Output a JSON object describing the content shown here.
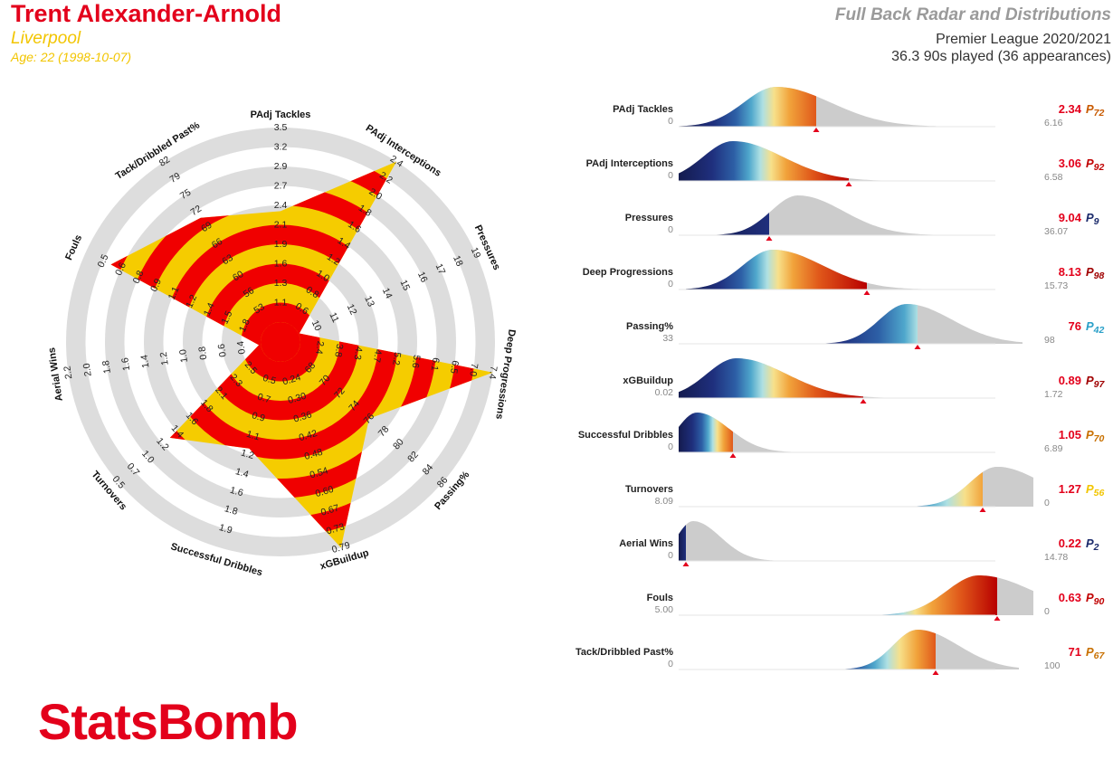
{
  "header": {
    "player": "Trent Alexander-Arnold",
    "team": "Liverpool",
    "age": "Age: 22 (1998-10-07)",
    "title": "Full Back Radar and Distributions",
    "competition": "Premier League 2020/2021",
    "minutes": "36.3 90s played (36 appearances)"
  },
  "brand": "StatsBomb",
  "colors": {
    "radar_red": "#f00000",
    "radar_yellow": "#f5cc00",
    "ring_grey": "#dddddd",
    "dist_grey": "#cccccc",
    "value_red": "#e3001b",
    "marker_red": "#e3001b"
  },
  "chart_data": [
    {
      "type": "radar",
      "metrics": [
        {
          "name": "PAdj Tackles",
          "ticks": [
            "1.1",
            "1.3",
            "1.6",
            "1.9",
            "2.1",
            "2.4",
            "2.7",
            "2.9",
            "3.2",
            "3.5"
          ],
          "value": 2.34,
          "range": [
            0.8,
            3.5
          ],
          "reversed": false
        },
        {
          "name": "PAdj Interceptions",
          "ticks": [
            "0.6",
            "0.8",
            "1.0",
            "1.2",
            "1.4",
            "1.6",
            "1.8",
            "2.0",
            "2.2",
            "2.4"
          ],
          "value": 3.06,
          "range": [
            0.4,
            2.4
          ],
          "reversed": false
        },
        {
          "name": "Pressures",
          "ticks": [
            "10",
            "11",
            "12",
            "13",
            "14",
            "15",
            "16",
            "17",
            "18",
            "19"
          ],
          "value": 9.04,
          "range": [
            9,
            19
          ],
          "reversed": false
        },
        {
          "name": "Deep Progressions",
          "ticks": [
            "2.4",
            "3.8",
            "4.3",
            "4.7",
            "5.2",
            "5.6",
            "6.1",
            "6.5",
            "7.0",
            "7.4"
          ],
          "value": 8.13,
          "range": [
            2.0,
            7.4
          ],
          "reversed": false
        },
        {
          "name": "Passing%",
          "ticks": [
            "68",
            "70",
            "72",
            "74",
            "76",
            "78",
            "80",
            "82",
            "84",
            "86"
          ],
          "value": 76,
          "range": [
            66,
            86
          ],
          "reversed": false
        },
        {
          "name": "xGBuildup",
          "ticks": [
            "0.24",
            "0.30",
            "0.36",
            "0.42",
            "0.48",
            "0.54",
            "0.60",
            "0.67",
            "0.73",
            "0.79"
          ],
          "value": 0.89,
          "range": [
            0.18,
            0.79
          ],
          "reversed": false
        },
        {
          "name": "Successful Dribbles",
          "ticks": [
            "0.5",
            "0.7",
            "0.9",
            "1.1",
            "1.2",
            "1.4",
            "1.6",
            "1.8",
            "1.9"
          ],
          "value": 1.05,
          "range": [
            0.3,
            1.9
          ],
          "reversed": false
        },
        {
          "name": "Turnovers",
          "ticks": [
            "2.5",
            "2.3",
            "2.1",
            "1.8",
            "1.6",
            "1.4",
            "1.2",
            "1.0",
            "0.7",
            "0.5"
          ],
          "value": 1.27,
          "range": [
            2.7,
            0.5
          ],
          "reversed": true
        },
        {
          "name": "Aerial Wins",
          "ticks": [
            "0.4",
            "0.6",
            "0.8",
            "1.0",
            "1.2",
            "1.4",
            "1.6",
            "1.8",
            "2.0",
            "2.2"
          ],
          "value": 0.22,
          "range": [
            0.2,
            2.2
          ],
          "reversed": false
        },
        {
          "name": "Fouls",
          "ticks": [
            "1.8",
            "1.5",
            "1.4",
            "1.2",
            "1.1",
            "0.9",
            "0.8",
            "0.6",
            "0.5"
          ],
          "value": 0.63,
          "range": [
            2.0,
            0.4
          ],
          "reversed": true
        },
        {
          "name": "Tack/Dribbled Past%",
          "ticks": [
            "53",
            "56",
            "60",
            "63",
            "66",
            "69",
            "72",
            "75",
            "79",
            "82"
          ],
          "value": 71,
          "range": [
            50,
            82
          ],
          "reversed": false
        }
      ]
    },
    {
      "type": "area",
      "distributions": [
        {
          "name": "PAdj Tackles",
          "min_label": "0",
          "max_label": "6.16",
          "value": "2.34",
          "percentile_prefix": "P",
          "percentile": "72",
          "value_color": "#e3001b",
          "percentile_color": "#c85a00",
          "fraction": 0.38,
          "reversed": false,
          "peak": 0.27,
          "spread": 0.12,
          "start": 0.0,
          "end": 0.88
        },
        {
          "name": "PAdj Interceptions",
          "min_label": "0",
          "max_label": "6.58",
          "value": "3.06",
          "percentile_prefix": "P",
          "percentile": "92",
          "value_color": "#e3001b",
          "percentile_color": "#c00000",
          "fraction": 0.47,
          "reversed": false,
          "peak": 0.15,
          "spread": 0.11,
          "start": 0.0,
          "end": 0.8
        },
        {
          "name": "Pressures",
          "min_label": "0",
          "max_label": "36.07",
          "value": "9.04",
          "percentile_prefix": "P",
          "percentile": "9",
          "value_color": "#e3001b",
          "percentile_color": "#1b2a6b",
          "fraction": 0.25,
          "reversed": false,
          "peak": 0.33,
          "spread": 0.1,
          "start": 0.08,
          "end": 0.72
        },
        {
          "name": "Deep Progressions",
          "min_label": "0",
          "max_label": "15.73",
          "value": "8.13",
          "percentile_prefix": "P",
          "percentile": "98",
          "value_color": "#e3001b",
          "percentile_color": "#a00000",
          "fraction": 0.52,
          "reversed": false,
          "peak": 0.26,
          "spread": 0.11,
          "start": 0.02,
          "end": 0.7
        },
        {
          "name": "Passing%",
          "min_label": "33",
          "max_label": "98",
          "value": "76",
          "percentile_prefix": "P",
          "percentile": "42",
          "value_color": "#e3001b",
          "percentile_color": "#2aa0c8",
          "fraction": 0.66,
          "reversed": false,
          "peak": 0.63,
          "spread": 0.1,
          "start": 0.28,
          "end": 0.95
        },
        {
          "name": "xGBuildup",
          "min_label": "0.02",
          "max_label": "1.72",
          "value": "0.89",
          "percentile_prefix": "P",
          "percentile": "97",
          "value_color": "#e3001b",
          "percentile_color": "#a00000",
          "fraction": 0.51,
          "reversed": false,
          "peak": 0.16,
          "spread": 0.11,
          "start": 0.0,
          "end": 0.7
        },
        {
          "name": "Successful Dribbles",
          "min_label": "0",
          "max_label": "6.89",
          "value": "1.05",
          "percentile_prefix": "P",
          "percentile": "70",
          "value_color": "#e3001b",
          "percentile_color": "#c87000",
          "fraction": 0.15,
          "reversed": false,
          "peak": 0.05,
          "spread": 0.07,
          "start": 0.0,
          "end": 0.6
        },
        {
          "name": "Turnovers",
          "min_label": "8.09",
          "max_label": "0",
          "value": "1.27",
          "percentile_prefix": "P",
          "percentile": "56",
          "value_color": "#e3001b",
          "percentile_color": "#f2c500",
          "fraction": 0.84,
          "reversed": true,
          "peak": 0.88,
          "spread": 0.1,
          "start": 0.38,
          "end": 0.98
        },
        {
          "name": "Aerial Wins",
          "min_label": "0",
          "max_label": "14.78",
          "value": "0.22",
          "percentile_prefix": "P",
          "percentile": "2",
          "value_color": "#e3001b",
          "percentile_color": "#1b2a6b",
          "fraction": 0.02,
          "reversed": false,
          "peak": 0.04,
          "spread": 0.06,
          "start": 0.0,
          "end": 0.27
        },
        {
          "name": "Fouls",
          "min_label": "5.00",
          "max_label": "0",
          "value": "0.63",
          "percentile_prefix": "P",
          "percentile": "90",
          "value_color": "#e3001b",
          "percentile_color": "#c00000",
          "fraction": 0.88,
          "reversed": true,
          "peak": 0.83,
          "spread": 0.12,
          "start": 0.37,
          "end": 0.98
        },
        {
          "name": "Tack/Dribbled Past%",
          "min_label": "0",
          "max_label": "100",
          "value": "71",
          "percentile_prefix": "P",
          "percentile": "67",
          "value_color": "#e3001b",
          "percentile_color": "#c87000",
          "fraction": 0.71,
          "reversed": false,
          "peak": 0.66,
          "spread": 0.09,
          "start": 0.32,
          "end": 0.94
        }
      ]
    }
  ]
}
